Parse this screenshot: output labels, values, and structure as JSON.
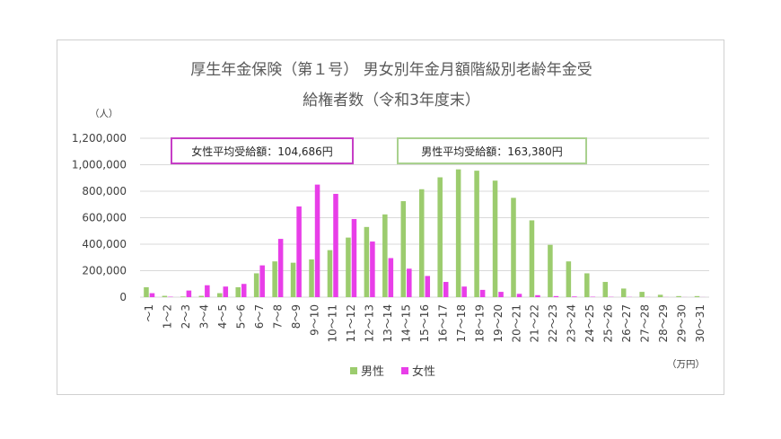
{
  "chart_data": {
    "type": "bar",
    "title_line1": "厚生年金保険（第１号）  男女別年金月額階級別老齢年金受",
    "title_line2": "給権者数（令和3年度末）",
    "y_unit": "（人）",
    "x_unit": "（万円）",
    "ylim": [
      0,
      1200000
    ],
    "y_ticks": [
      "0",
      "200,000",
      "400,000",
      "600,000",
      "800,000",
      "1,000,000",
      "1,200,000"
    ],
    "grid": true,
    "legend_position": "bottom",
    "categories": [
      "～1",
      "1～2",
      "2～3",
      "3～4",
      "4～5",
      "5～6",
      "6～7",
      "7～8",
      "8～9",
      "9～10",
      "10～11",
      "11～12",
      "12～13",
      "13～14",
      "14～15",
      "15～16",
      "16～17",
      "17～18",
      "18～19",
      "19～20",
      "20～21",
      "21～22",
      "22～23",
      "23～24",
      "24～25",
      "25～26",
      "26～27",
      "27～28",
      "28～29",
      "29～30",
      "30～31"
    ],
    "series": [
      {
        "name": "男性",
        "color": "#9ccc6e",
        "values": [
          75000,
          10000,
          5000,
          10000,
          30000,
          75000,
          180000,
          270000,
          260000,
          285000,
          355000,
          450000,
          530000,
          625000,
          725000,
          815000,
          905000,
          965000,
          955000,
          880000,
          750000,
          580000,
          395000,
          270000,
          180000,
          115000,
          65000,
          40000,
          18000,
          8000,
          8000
        ]
      },
      {
        "name": "女性",
        "color": "#e83ee8",
        "values": [
          30000,
          3000,
          50000,
          90000,
          80000,
          100000,
          240000,
          440000,
          685000,
          850000,
          780000,
          590000,
          420000,
          295000,
          215000,
          160000,
          115000,
          80000,
          55000,
          40000,
          25000,
          15000,
          8000,
          5000,
          3000,
          2000,
          1500,
          1000,
          800,
          500,
          500
        ]
      }
    ],
    "annotations": [
      {
        "text": "女性平均受給額：104,686円",
        "border_color": "#c63ec6"
      },
      {
        "text": "男性平均受給額：163,380円",
        "border_color": "#a9d18e"
      }
    ]
  }
}
